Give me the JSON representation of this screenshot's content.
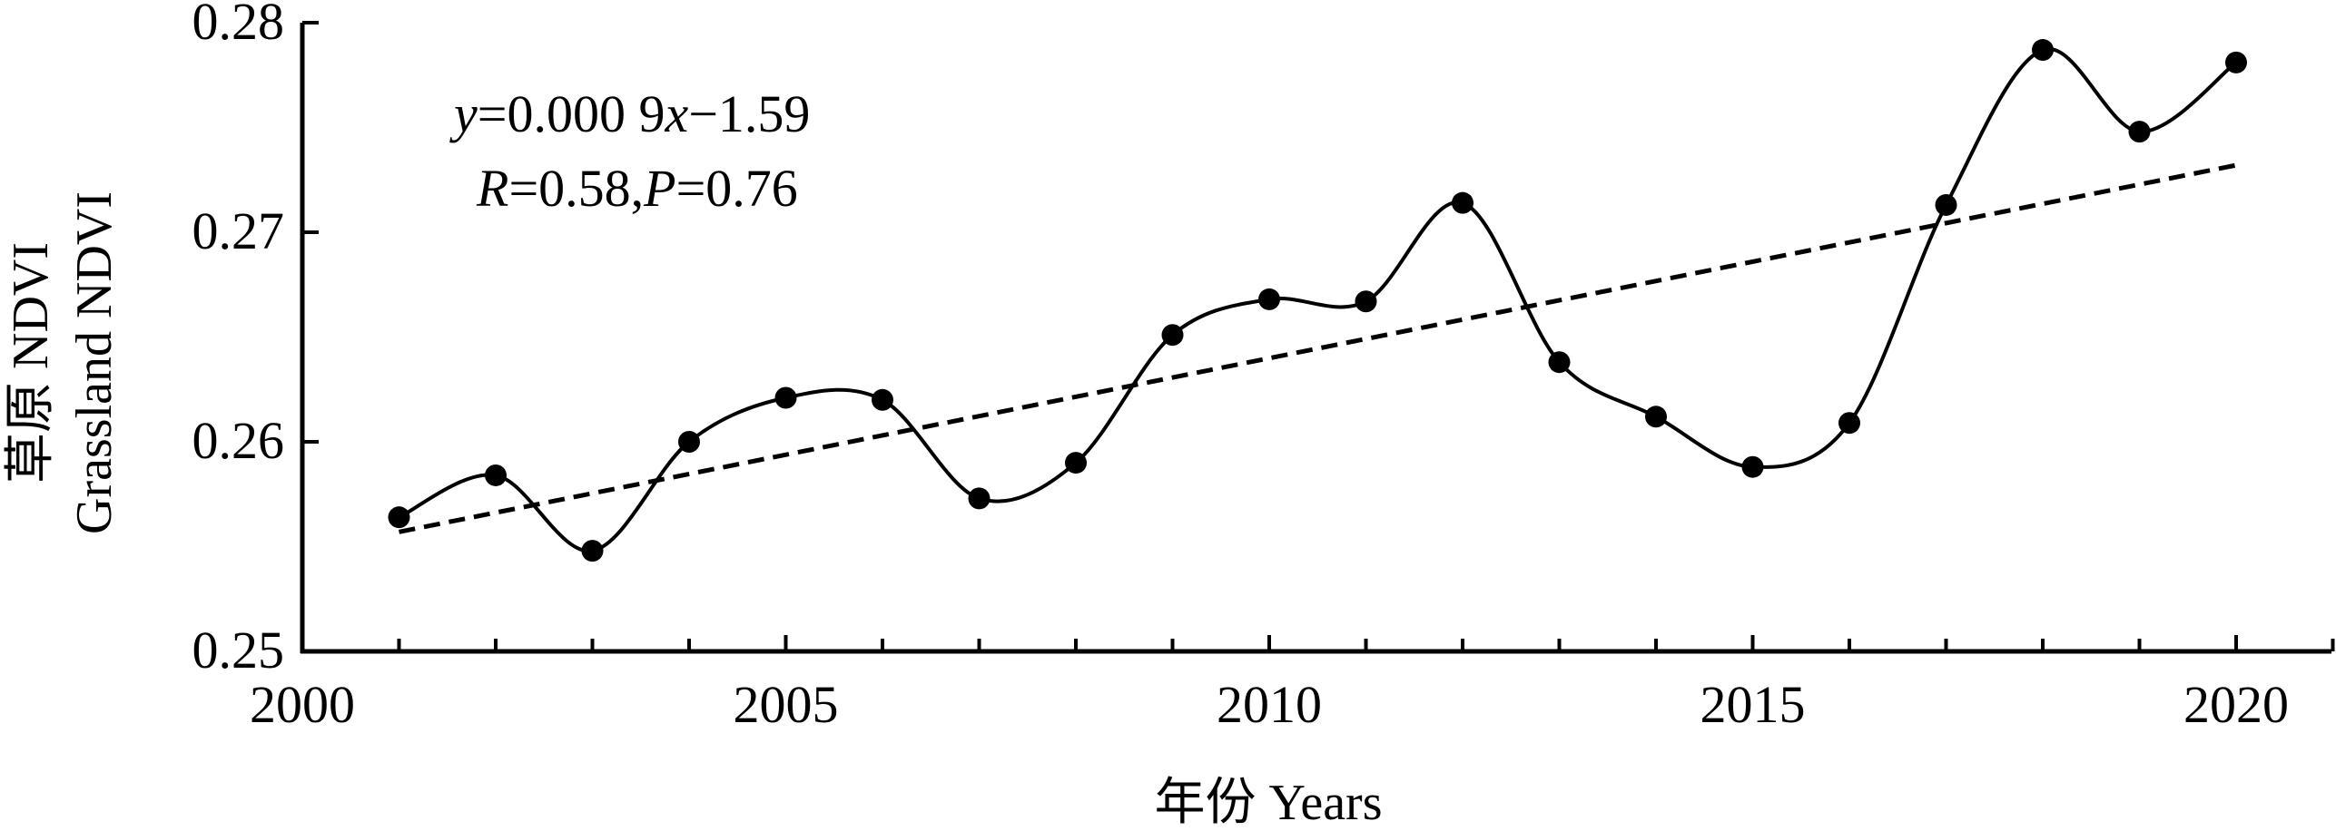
{
  "chart_data": {
    "type": "line",
    "xlabel": "年份 Years",
    "ylabel_line1": "草原 NDVI",
    "ylabel_line2": "Grassland NDVI",
    "xlim": [
      2000,
      2021
    ],
    "ylim": [
      0.25,
      0.28
    ],
    "x_ticks": [
      2000,
      2005,
      2010,
      2015,
      2020
    ],
    "y_ticks": [
      0.25,
      0.26,
      0.27,
      0.28
    ],
    "x_tick_labels": [
      "2000",
      "2005",
      "2010",
      "2015",
      "2020"
    ],
    "y_tick_labels": [
      "0.25",
      "0.26",
      "0.27",
      "0.28"
    ],
    "series": [
      {
        "style": "smooth line with filled circle markers",
        "x": [
          2001,
          2002,
          2003,
          2004,
          2005,
          2006,
          2007,
          2008,
          2009,
          2010,
          2011,
          2012,
          2013,
          2014,
          2015,
          2016,
          2017,
          2018,
          2019,
          2020
        ],
        "y": [
          0.2564,
          0.2584,
          0.2548,
          0.26,
          0.2621,
          0.262,
          0.2573,
          0.259,
          0.2651,
          0.2668,
          0.2667,
          0.2714,
          0.2638,
          0.2612,
          0.2588,
          0.2609,
          0.2713,
          0.2787,
          0.2748,
          0.2781
        ]
      }
    ],
    "trendline": {
      "style": "dashed",
      "x": [
        2001,
        2020
      ],
      "y": [
        0.2557,
        0.2732
      ]
    },
    "annotation": {
      "equation": {
        "y": "y",
        "eq1": "=0.000 9",
        "x": "x",
        "eq2": "−1.59"
      },
      "stats": {
        "r": "R",
        "r_val": "=0.58,",
        "p": "P",
        "p_val": "=0.76"
      }
    },
    "grid": false,
    "legend": "none"
  }
}
